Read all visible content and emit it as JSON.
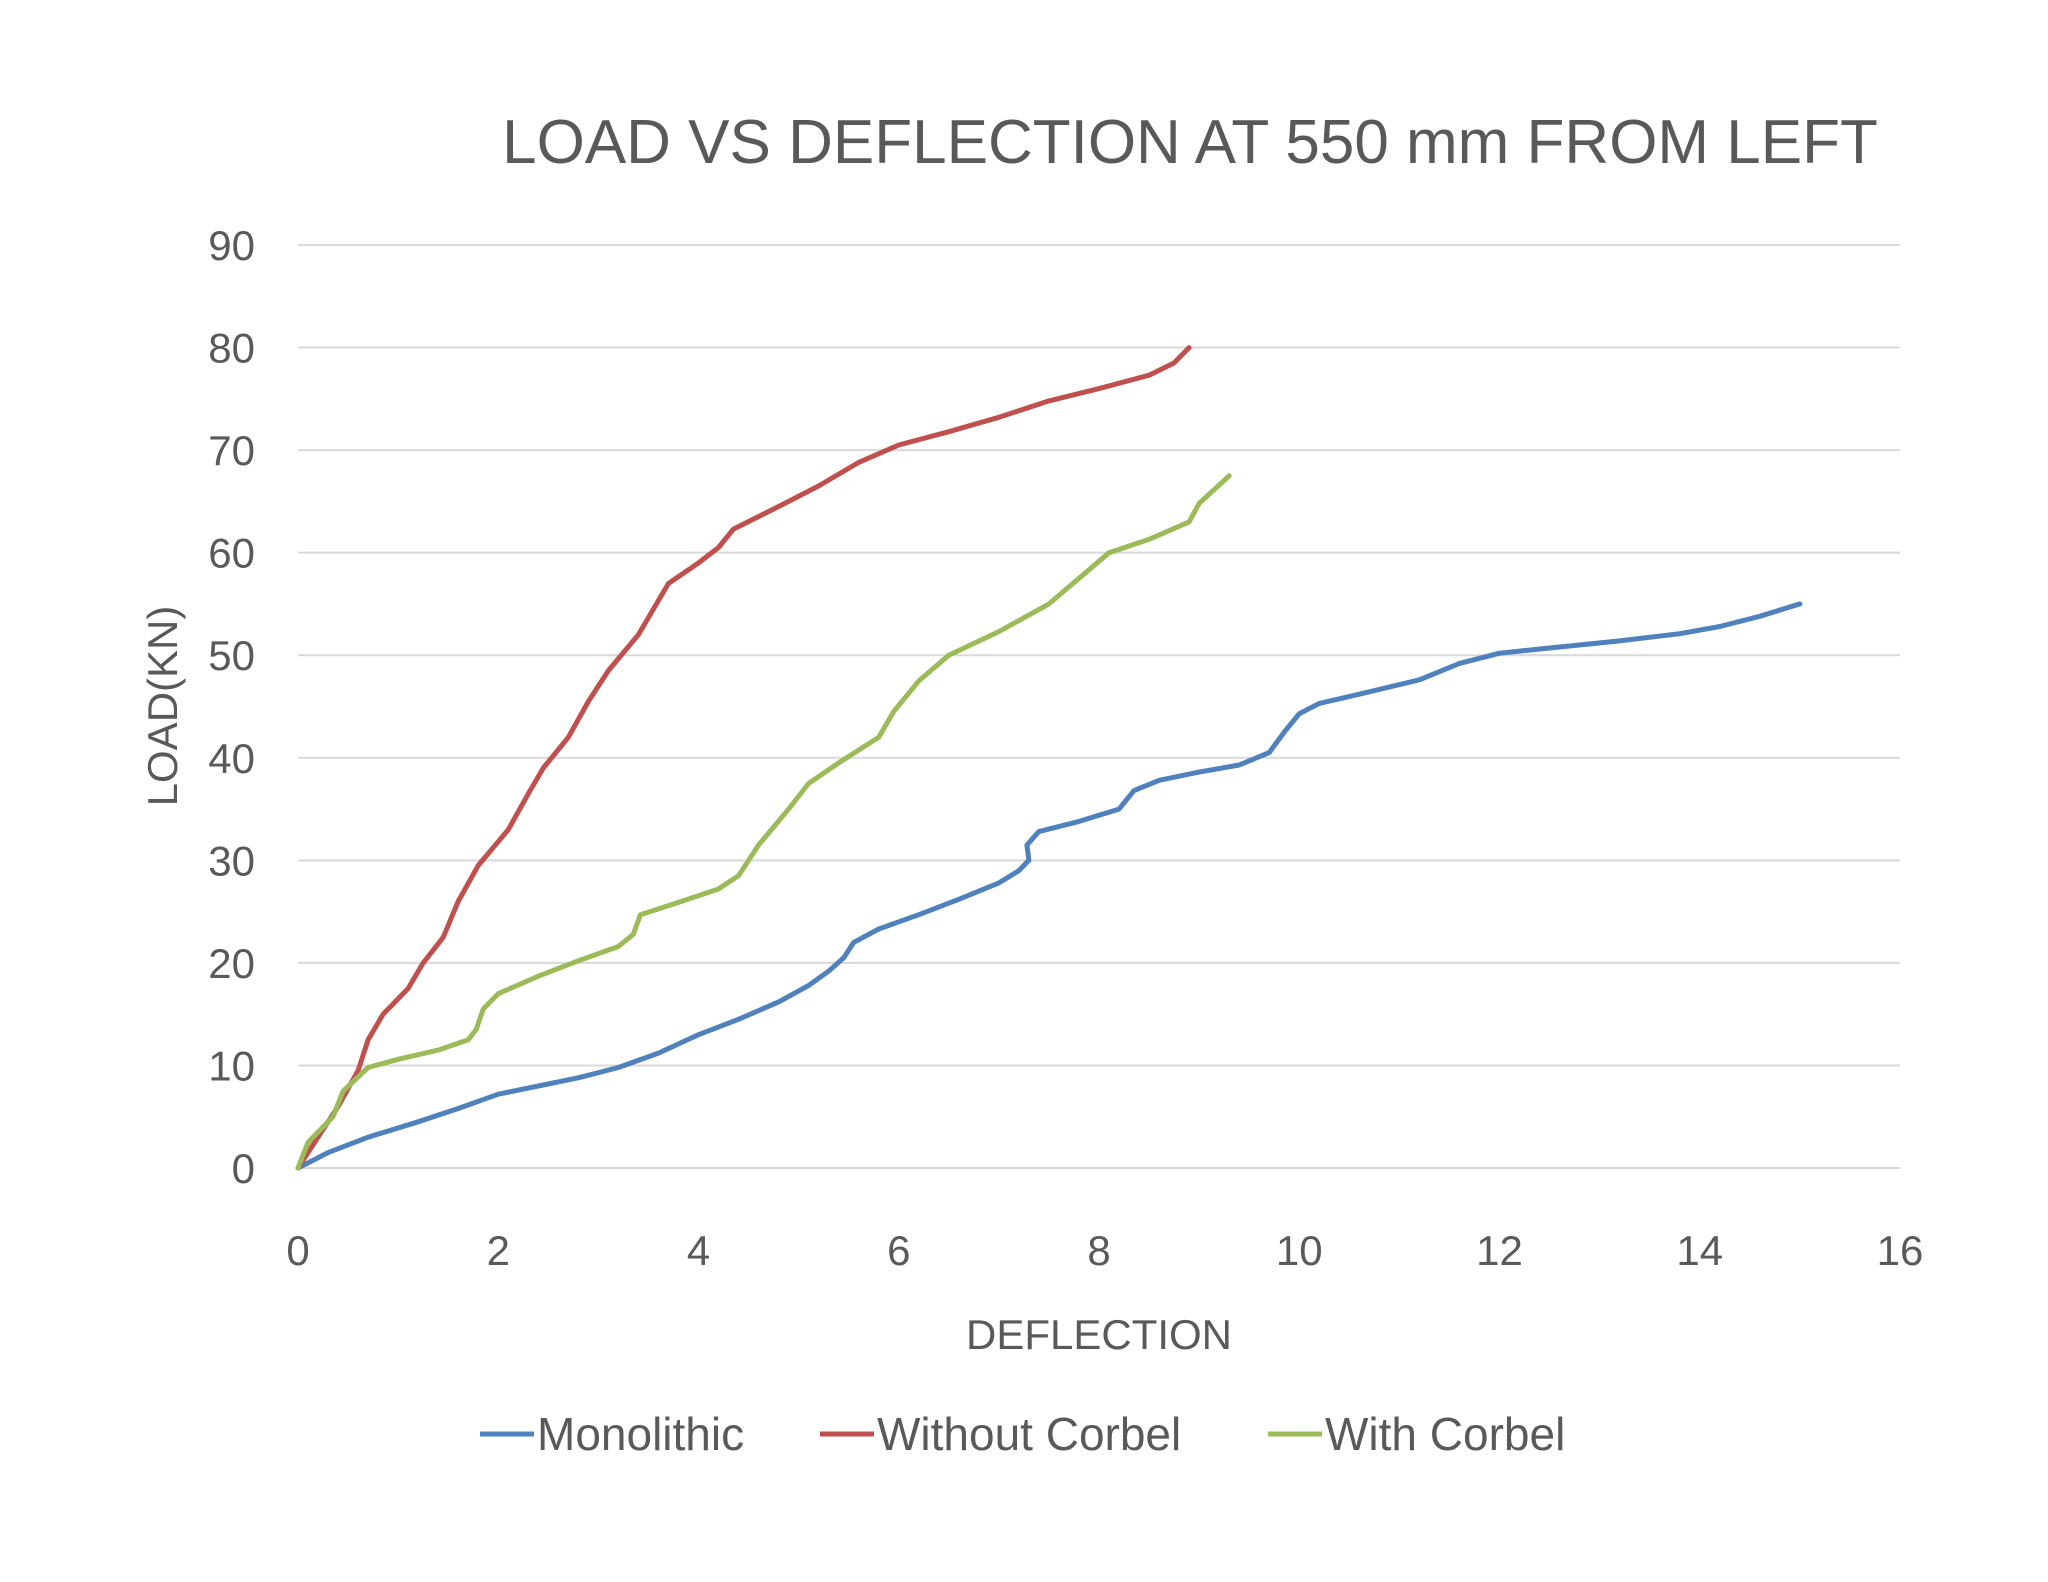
{
  "chart_data": {
    "type": "line",
    "title": "LOAD VS DEFLECTION AT 550 mm FROM LEFT",
    "xlabel": "DEFLECTION",
    "ylabel": "LOAD(KN)",
    "xlim": [
      0,
      16
    ],
    "ylim": [
      0,
      90
    ],
    "xticks": [
      0,
      2,
      4,
      6,
      8,
      10,
      12,
      14,
      16
    ],
    "yticks": [
      0,
      10,
      20,
      30,
      40,
      50,
      60,
      70,
      80,
      90
    ],
    "grid": "horizontal",
    "legend_position": "bottom",
    "series": [
      {
        "name": "Monolithic",
        "color": "#4f81bd",
        "points": [
          [
            0,
            0
          ],
          [
            0.3,
            1.5
          ],
          [
            0.7,
            3
          ],
          [
            1.2,
            4.5
          ],
          [
            1.6,
            5.8
          ],
          [
            2,
            7.2
          ],
          [
            2.4,
            8
          ],
          [
            2.8,
            8.8
          ],
          [
            3.2,
            9.8
          ],
          [
            3.6,
            11.2
          ],
          [
            4,
            13
          ],
          [
            4.4,
            14.5
          ],
          [
            4.8,
            16.2
          ],
          [
            5.1,
            17.8
          ],
          [
            5.3,
            19.2
          ],
          [
            5.45,
            20.5
          ],
          [
            5.55,
            22
          ],
          [
            5.8,
            23.3
          ],
          [
            6.2,
            24.7
          ],
          [
            6.6,
            26.2
          ],
          [
            7,
            27.8
          ],
          [
            7.2,
            29
          ],
          [
            7.3,
            30
          ],
          [
            7.28,
            31.5
          ],
          [
            7.4,
            32.8
          ],
          [
            7.8,
            33.8
          ],
          [
            8.2,
            35
          ],
          [
            8.35,
            36.8
          ],
          [
            8.6,
            37.8
          ],
          [
            9,
            38.6
          ],
          [
            9.4,
            39.3
          ],
          [
            9.7,
            40.5
          ],
          [
            9.85,
            42.5
          ],
          [
            10,
            44.3
          ],
          [
            10.2,
            45.3
          ],
          [
            10.6,
            46.2
          ],
          [
            11.2,
            47.6
          ],
          [
            11.6,
            49.2
          ],
          [
            12,
            50.2
          ],
          [
            12.6,
            50.8
          ],
          [
            13.2,
            51.4
          ],
          [
            13.8,
            52.1
          ],
          [
            14.2,
            52.8
          ],
          [
            14.6,
            53.8
          ],
          [
            15,
            55
          ]
        ]
      },
      {
        "name": "Without Corbel",
        "color": "#c0504d",
        "points": [
          [
            0,
            0
          ],
          [
            0.2,
            3
          ],
          [
            0.4,
            6
          ],
          [
            0.6,
            9.5
          ],
          [
            0.7,
            12.5
          ],
          [
            0.85,
            15
          ],
          [
            1.1,
            17.5
          ],
          [
            1.25,
            20
          ],
          [
            1.45,
            22.5
          ],
          [
            1.6,
            26
          ],
          [
            1.8,
            29.5
          ],
          [
            2.1,
            33
          ],
          [
            2.3,
            36.5
          ],
          [
            2.45,
            39
          ],
          [
            2.7,
            42
          ],
          [
            2.9,
            45.5
          ],
          [
            3.1,
            48.5
          ],
          [
            3.4,
            52
          ],
          [
            3.55,
            54.5
          ],
          [
            3.7,
            57
          ],
          [
            4,
            59
          ],
          [
            4.2,
            60.5
          ],
          [
            4.35,
            62.3
          ],
          [
            4.8,
            64.5
          ],
          [
            5.2,
            66.5
          ],
          [
            5.6,
            68.8
          ],
          [
            6,
            70.5
          ],
          [
            6.5,
            71.8
          ],
          [
            7,
            73.2
          ],
          [
            7.5,
            74.8
          ],
          [
            8,
            76
          ],
          [
            8.5,
            77.3
          ],
          [
            8.75,
            78.5
          ],
          [
            8.9,
            80
          ]
        ]
      },
      {
        "name": "With Corbel",
        "color": "#9bbb59",
        "points": [
          [
            0,
            0
          ],
          [
            0.1,
            2.5
          ],
          [
            0.35,
            5
          ],
          [
            0.45,
            7.5
          ],
          [
            0.7,
            9.8
          ],
          [
            1,
            10.6
          ],
          [
            1.4,
            11.5
          ],
          [
            1.7,
            12.5
          ],
          [
            1.78,
            13.5
          ],
          [
            1.85,
            15.5
          ],
          [
            2,
            17
          ],
          [
            2.4,
            18.7
          ],
          [
            2.8,
            20.2
          ],
          [
            3.2,
            21.6
          ],
          [
            3.35,
            22.8
          ],
          [
            3.42,
            24.7
          ],
          [
            3.8,
            25.9
          ],
          [
            4.2,
            27.2
          ],
          [
            4.4,
            28.5
          ],
          [
            4.6,
            31.5
          ],
          [
            4.9,
            35
          ],
          [
            5.1,
            37.5
          ],
          [
            5.4,
            39.5
          ],
          [
            5.8,
            42
          ],
          [
            5.95,
            44.5
          ],
          [
            6.2,
            47.5
          ],
          [
            6.5,
            50
          ],
          [
            7,
            52.3
          ],
          [
            7.5,
            55
          ],
          [
            7.8,
            57.5
          ],
          [
            8.1,
            60
          ],
          [
            8.5,
            61.3
          ],
          [
            8.9,
            63
          ],
          [
            9,
            64.8
          ],
          [
            9.3,
            67.5
          ]
        ]
      }
    ]
  }
}
